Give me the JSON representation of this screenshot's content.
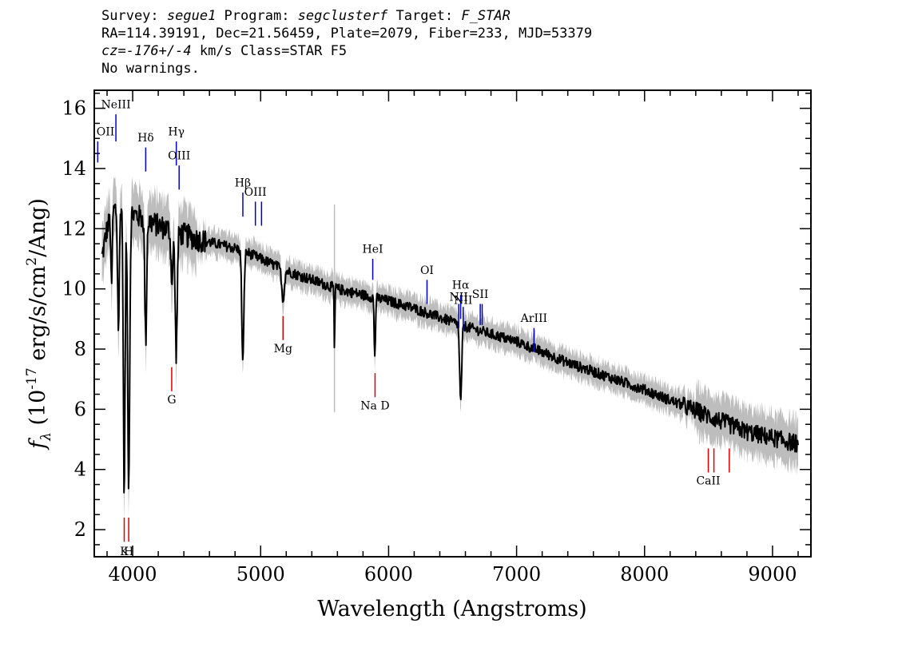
{
  "header": {
    "line1": {
      "survey_label": "Survey: ",
      "survey": "segue1",
      "program_label": " Program: ",
      "program": "segclusterf",
      "target_label": " Target: ",
      "target": "F_STAR"
    },
    "line2": "RA=114.39191, Dec=21.56459, Plate=2079, Fiber=233, MJD=53379",
    "line3": {
      "cz": "cz=-176+/-4",
      "rest": " km/s Class=STAR F5"
    },
    "line4": "No warnings."
  },
  "chart_data": {
    "type": "line",
    "xlabel": "Wavelength (Angstroms)",
    "ylabel": "f_λ (10^-17 erg/s/cm^2/Ang)",
    "ylabel_parts": {
      "f": "f",
      "lambda": "λ",
      "open": " (10",
      "exp1": "-17",
      "mid": " erg/s/cm",
      "exp2": "2",
      "close": "/Ang)"
    },
    "xlim": [
      3700,
      9300
    ],
    "ylim": [
      1.1,
      16.6
    ],
    "xticks": [
      4000,
      5000,
      6000,
      7000,
      8000,
      9000
    ],
    "yticks": [
      2,
      4,
      6,
      8,
      10,
      12,
      14,
      16
    ],
    "x_minor_step": 200,
    "y_minor_step": 0.5,
    "colors": {
      "flux": "#000000",
      "error_band": "#bdbdbd",
      "emission": "#0000cc",
      "absorption": "#dd0000"
    },
    "continuum": {
      "x": [
        3750,
        3800,
        3850,
        3900,
        3950,
        4000,
        4100,
        4200,
        4300,
        4400,
        4500,
        4600,
        4700,
        4800,
        4900,
        5000,
        5200,
        5400,
        5600,
        5800,
        6000,
        6200,
        6400,
        6600,
        6800,
        7000,
        7200,
        7400,
        7600,
        7800,
        8000,
        8200,
        8400,
        8600,
        8800,
        9000,
        9200
      ],
      "y": [
        10.8,
        12.0,
        12.6,
        12.8,
        12.7,
        12.5,
        12.3,
        12.1,
        11.95,
        11.8,
        11.65,
        11.55,
        11.45,
        11.35,
        11.2,
        11.0,
        10.6,
        10.3,
        10.0,
        9.8,
        9.6,
        9.35,
        9.05,
        8.75,
        8.5,
        8.25,
        7.9,
        7.55,
        7.25,
        6.95,
        6.65,
        6.3,
        5.95,
        5.6,
        5.25,
        5.05,
        4.85
      ]
    },
    "absorption_features": [
      {
        "center": 3835,
        "width": 5,
        "depth": 2.5
      },
      {
        "center": 3889,
        "width": 7,
        "depth": 4.0
      },
      {
        "center": 3934,
        "width": 7,
        "depth": 9.5
      },
      {
        "center": 3969,
        "width": 8,
        "depth": 9.0
      },
      {
        "center": 4102,
        "width": 7,
        "depth": 4.0
      },
      {
        "center": 4307,
        "width": 8,
        "depth": 1.6
      },
      {
        "center": 4340,
        "width": 8,
        "depth": 4.0
      },
      {
        "center": 4861,
        "width": 8,
        "depth": 3.7
      },
      {
        "center": 5175,
        "width": 10,
        "depth": 1.0
      },
      {
        "center": 5577,
        "width": 3,
        "depth": 2.1
      },
      {
        "center": 5892,
        "width": 5,
        "depth": 2.0
      },
      {
        "center": 6563,
        "width": 8,
        "depth": 2.6
      }
    ],
    "emission_lines": [
      {
        "label": "OII",
        "x": 3727,
        "y_top": 14.9,
        "y_bottom": 14.2,
        "label_y": 15.1
      },
      {
        "label": "NeIII",
        "x": 3869,
        "y_top": 15.8,
        "y_bottom": 14.9,
        "label_y": 16.0
      },
      {
        "label": "Hδ",
        "x": 4102,
        "y_top": 14.7,
        "y_bottom": 13.9,
        "label_y": 14.9
      },
      {
        "label": "Hγ",
        "x": 4341,
        "y_top": 14.9,
        "y_bottom": 14.1,
        "label_y": 15.1
      },
      {
        "label": "OIII",
        "x": 4363,
        "y_top": 14.1,
        "y_bottom": 13.3,
        "label_y": 14.3
      },
      {
        "label": "Hβ",
        "x": 4861,
        "y_top": 13.2,
        "y_bottom": 12.4,
        "label_y": 13.4
      },
      {
        "label": "OIII",
        "x": 4959,
        "y_top": 12.9,
        "y_bottom": 12.1,
        "label_y": 13.1
      },
      {
        "label": "",
        "x": 5007,
        "y_top": 12.9,
        "y_bottom": 12.1,
        "label_y": 13.1
      },
      {
        "label": "HeI",
        "x": 5876,
        "y_top": 11.0,
        "y_bottom": 10.3,
        "label_y": 11.2
      },
      {
        "label": "OI",
        "x": 6300,
        "y_top": 10.3,
        "y_bottom": 9.5,
        "label_y": 10.5
      },
      {
        "label": "NII",
        "x": 6548,
        "y_top": 9.5,
        "y_bottom": 8.7,
        "label_y": 9.6
      },
      {
        "label": "Hα",
        "x": 6563,
        "y_top": 9.8,
        "y_bottom": 9.0,
        "label_y": 10.0
      },
      {
        "label": "NII",
        "x": 6583,
        "y_top": 9.4,
        "y_bottom": 8.6,
        "label_y": 9.5
      },
      {
        "label": "SII",
        "x": 6716,
        "y_top": 9.5,
        "y_bottom": 8.8,
        "label_y": 9.7
      },
      {
        "label": "",
        "x": 6731,
        "y_top": 9.5,
        "y_bottom": 8.8,
        "label_y": 9.7
      },
      {
        "label": "ArIII",
        "x": 7136,
        "y_top": 8.7,
        "y_bottom": 7.9,
        "label_y": 8.9
      }
    ],
    "absorption_lines": [
      {
        "label": "K",
        "x": 3934,
        "y_top": 2.4,
        "y_bottom": 1.6,
        "label_y": 1.15
      },
      {
        "label": "H",
        "x": 3969,
        "y_top": 2.4,
        "y_bottom": 1.6,
        "label_y": 1.15
      },
      {
        "label": "G",
        "x": 4305,
        "y_top": 7.4,
        "y_bottom": 6.6,
        "label_y": 6.2
      },
      {
        "label": "Mg",
        "x": 5175,
        "y_top": 9.1,
        "y_bottom": 8.3,
        "label_y": 7.9
      },
      {
        "label": "Na D",
        "x": 5894,
        "y_top": 7.2,
        "y_bottom": 6.4,
        "label_y": 6.0
      },
      {
        "label": "CaII",
        "x": 8498,
        "y_top": 4.7,
        "y_bottom": 3.9,
        "label_y": 3.5
      },
      {
        "label": "",
        "x": 8542,
        "y_top": 4.7,
        "y_bottom": 3.9,
        "label_y": 3.5
      },
      {
        "label": "",
        "x": 8662,
        "y_top": 4.7,
        "y_bottom": 3.9,
        "label_y": 3.5
      }
    ]
  }
}
